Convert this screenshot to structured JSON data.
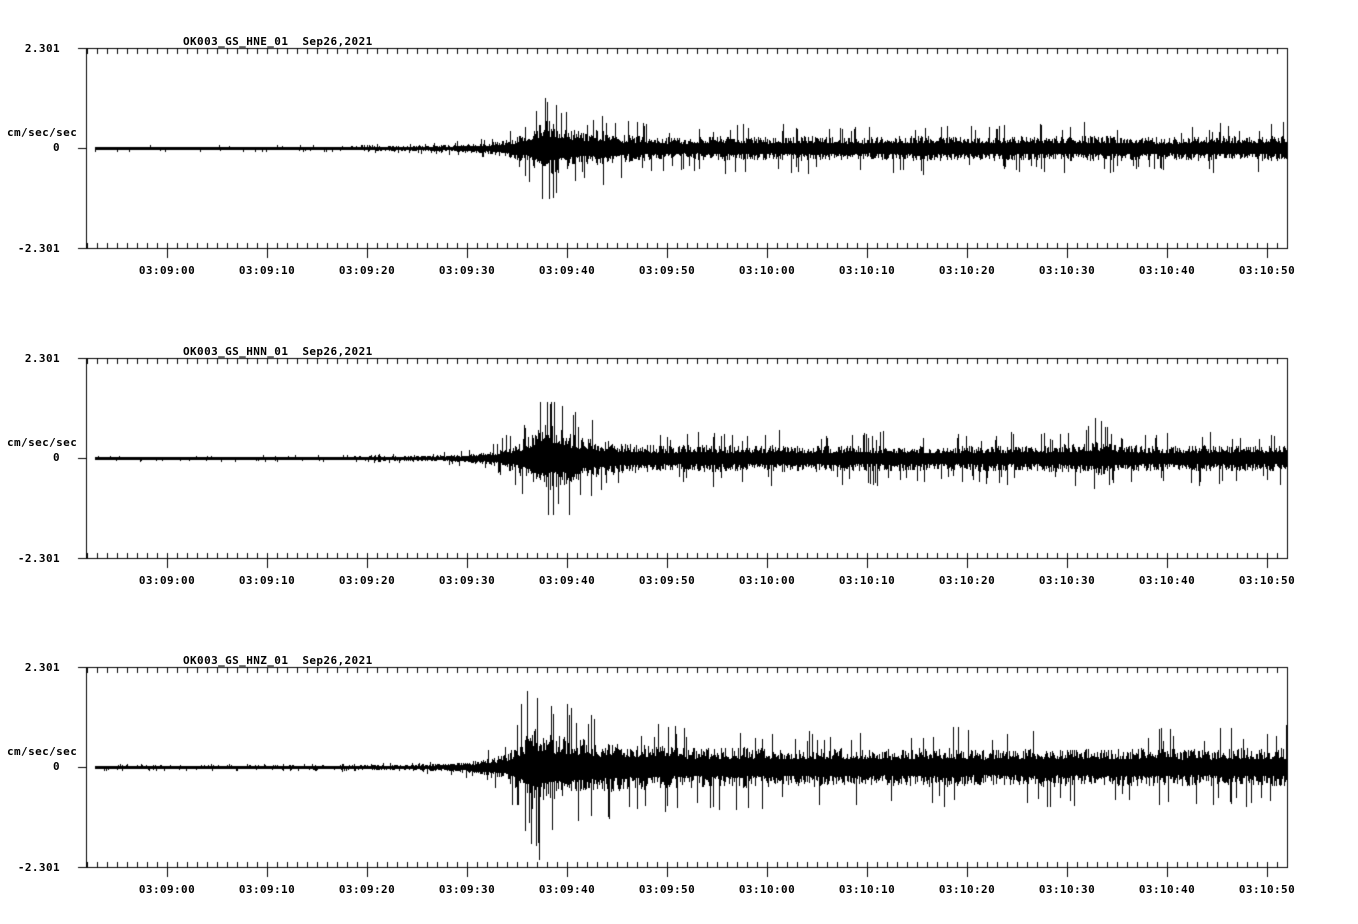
{
  "figure": {
    "background_color": "#ffffff",
    "ink_color": "#000000",
    "y_axis": {
      "max_label": "2.301",
      "zero_label": "0",
      "min_label": "-2.301",
      "units_label": "cm/sec/sec"
    },
    "x_axis": {
      "tick_labels": [
        "03:09:00",
        "03:09:10",
        "03:09:20",
        "03:09:30",
        "03:09:40",
        "03:09:50",
        "03:10:00",
        "03:10:10",
        "03:10:20",
        "03:10:30",
        "03:10:40",
        "03:10:50"
      ],
      "minor_tick_interval_sec": 1,
      "major_tick_interval_sec": 10
    }
  },
  "chart_data": [
    {
      "type": "line",
      "title": "OK003_GS_HNE_01",
      "date": "Sep26,2021",
      "ylabel": "cm/sec/sec",
      "ylim": [
        -2.301,
        2.301
      ],
      "x_range": [
        "03:08:52",
        "03:10:52"
      ],
      "envelope_note": "peak amplitude envelope (cm/sec/sec) vs seconds after 03:08:52, estimated from plot",
      "envelope": [
        [
          1,
          0.05
        ],
        [
          20,
          0.045
        ],
        [
          26,
          0.055
        ],
        [
          32,
          0.07
        ],
        [
          36,
          0.1
        ],
        [
          39,
          0.14
        ],
        [
          41,
          0.22
        ],
        [
          43,
          0.38
        ],
        [
          44.5,
          0.62
        ],
        [
          45.8,
          1.0
        ],
        [
          47,
          0.8
        ],
        [
          48.5,
          0.6
        ],
        [
          50,
          0.52
        ],
        [
          51.5,
          0.62
        ],
        [
          53,
          0.46
        ],
        [
          56,
          0.38
        ],
        [
          60,
          0.34
        ],
        [
          64,
          0.4
        ],
        [
          68,
          0.36
        ],
        [
          72,
          0.4
        ],
        [
          76,
          0.35
        ],
        [
          80,
          0.38
        ],
        [
          84,
          0.42
        ],
        [
          88,
          0.36
        ],
        [
          92,
          0.4
        ],
        [
          96,
          0.37
        ],
        [
          100,
          0.42
        ],
        [
          104,
          0.38
        ],
        [
          108,
          0.35
        ],
        [
          112,
          0.4
        ],
        [
          116,
          0.38
        ],
        [
          120,
          0.42
        ]
      ],
      "notable_peaks": [
        {
          "t": 46,
          "amp": 1.05
        },
        {
          "t": 46.6,
          "amp": -1.15
        },
        {
          "t": 44.9,
          "amp": 0.85
        }
      ]
    },
    {
      "type": "line",
      "title": "OK003_GS_HNN_01",
      "date": "Sep26,2021",
      "ylabel": "cm/sec/sec",
      "ylim": [
        -2.301,
        2.301
      ],
      "x_range": [
        "03:08:52",
        "03:10:52"
      ],
      "envelope_note": "peak amplitude envelope (cm/sec/sec) vs seconds after 03:08:52, estimated from plot",
      "envelope": [
        [
          1,
          0.04
        ],
        [
          24,
          0.045
        ],
        [
          30,
          0.06
        ],
        [
          35,
          0.09
        ],
        [
          38,
          0.13
        ],
        [
          41,
          0.25
        ],
        [
          43,
          0.5
        ],
        [
          44.5,
          0.85
        ],
        [
          46,
          1.15
        ],
        [
          47.5,
          0.95
        ],
        [
          49,
          0.75
        ],
        [
          51,
          0.6
        ],
        [
          54,
          0.48
        ],
        [
          58,
          0.42
        ],
        [
          62,
          0.45
        ],
        [
          66,
          0.4
        ],
        [
          70,
          0.44
        ],
        [
          75,
          0.4
        ],
        [
          80,
          0.42
        ],
        [
          85,
          0.38
        ],
        [
          90,
          0.42
        ],
        [
          95,
          0.4
        ],
        [
          100,
          0.5
        ],
        [
          101,
          0.62
        ],
        [
          102,
          0.48
        ],
        [
          104,
          0.42
        ],
        [
          108,
          0.4
        ],
        [
          112,
          0.42
        ],
        [
          116,
          0.4
        ],
        [
          120,
          0.44
        ]
      ],
      "notable_peaks": [
        {
          "t": 46.3,
          "amp": 1.25
        },
        {
          "t": 47.1,
          "amp": -1.05
        },
        {
          "t": 100.8,
          "amp": 0.92
        },
        {
          "t": 101.4,
          "amp": 0.85
        }
      ]
    },
    {
      "type": "line",
      "title": "OK003_GS_HNZ_01",
      "date": "Sep26,2021",
      "ylabel": "cm/sec/sec",
      "ylim": [
        -2.301,
        2.301
      ],
      "x_range": [
        "03:08:52",
        "03:10:52"
      ],
      "envelope_note": "peak amplitude envelope (cm/sec/sec) vs seconds after 03:08:52, estimated from plot",
      "envelope": [
        [
          1,
          0.05
        ],
        [
          26,
          0.055
        ],
        [
          32,
          0.08
        ],
        [
          36,
          0.12
        ],
        [
          39,
          0.2
        ],
        [
          42,
          0.45
        ],
        [
          43.5,
          0.95
        ],
        [
          44.5,
          1.45
        ],
        [
          46,
          1.15
        ],
        [
          48,
          1.0
        ],
        [
          51,
          0.85
        ],
        [
          54,
          0.75
        ],
        [
          58,
          0.68
        ],
        [
          62,
          0.64
        ],
        [
          66,
          0.66
        ],
        [
          70,
          0.62
        ],
        [
          75,
          0.64
        ],
        [
          80,
          0.6
        ],
        [
          85,
          0.63
        ],
        [
          90,
          0.59
        ],
        [
          95,
          0.62
        ],
        [
          100,
          0.6
        ],
        [
          105,
          0.63
        ],
        [
          110,
          0.6
        ],
        [
          115,
          0.62
        ],
        [
          120,
          0.65
        ]
      ],
      "notable_peaks": [
        {
          "t": 44.0,
          "amp": 1.75
        },
        {
          "t": 45.2,
          "amp": -2.15
        },
        {
          "t": 43.4,
          "amp": 1.45
        },
        {
          "t": 46.5,
          "amp": -1.45
        },
        {
          "t": 48.2,
          "amp": 1.2
        }
      ]
    }
  ]
}
